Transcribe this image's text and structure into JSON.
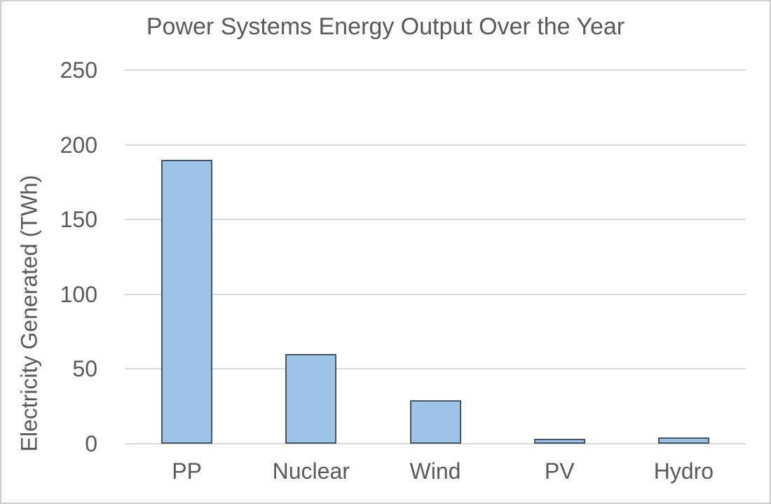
{
  "chart_data": {
    "type": "bar",
    "title": "Power Systems Energy Output Over the Year",
    "ylabel": "Electricity Generated (TWh)",
    "xlabel": "",
    "categories": [
      "PP",
      "Nuclear",
      "Wind",
      "PV",
      "Hydro"
    ],
    "values": [
      190,
      60,
      29,
      3.5,
      4
    ],
    "ylim": [
      0,
      250
    ],
    "yticks": [
      0,
      50,
      100,
      150,
      200,
      250
    ],
    "grid": "horizontal",
    "legend": "none",
    "colors": {
      "bar_fill": "#9dc3e6",
      "bar_border": "#44546a",
      "gridline": "#d9d9d9",
      "text": "#595959",
      "background": "#ffffff",
      "frame_border": "#d0cece"
    }
  }
}
